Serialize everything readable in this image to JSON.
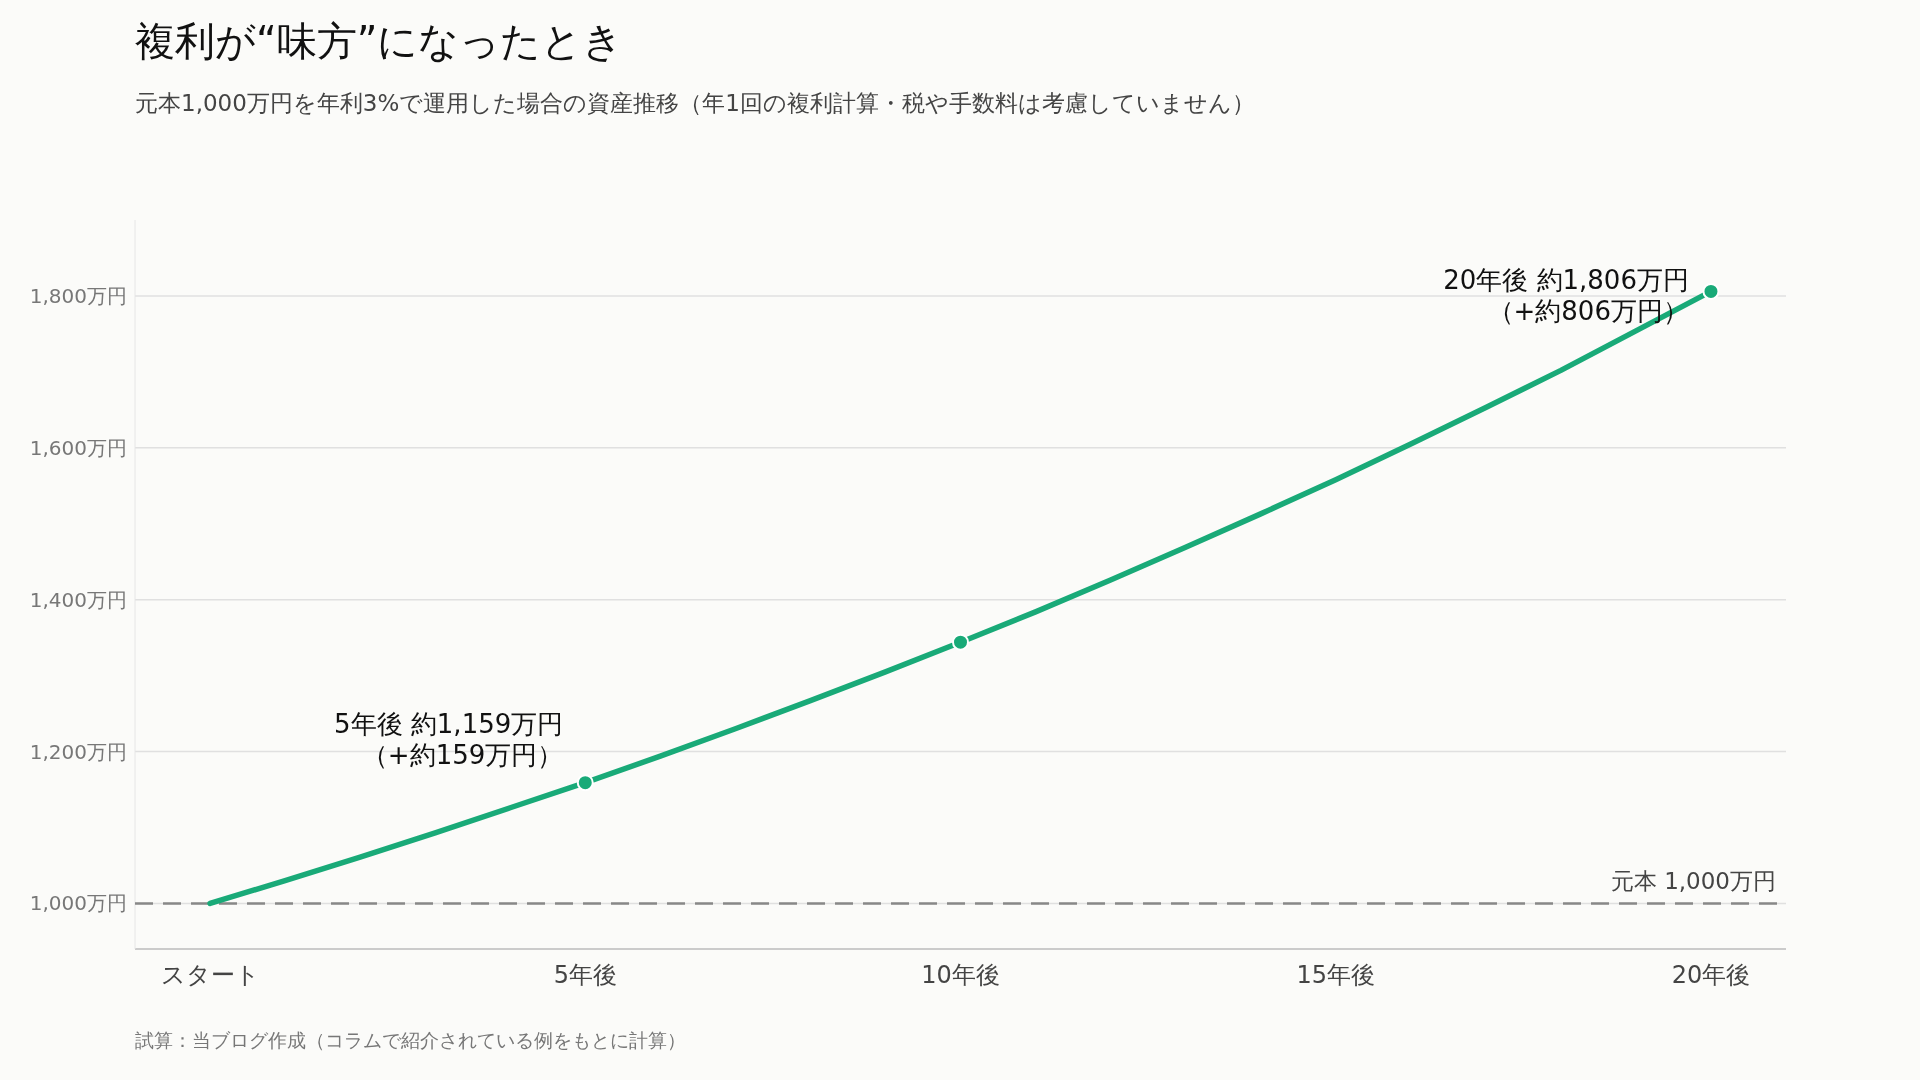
{
  "chart_data": {
    "type": "line",
    "title": "複利が“味方”になったとき",
    "subtitle": "元本1,000万円を年利3%で運用した場合の資産推移（年1回の複利計算・税や手数料は考慮していません）",
    "series": [
      {
        "color": "#19aa78",
        "marker": "none",
        "x": [
          0,
          1,
          2,
          3,
          4,
          5,
          6,
          7,
          8,
          9,
          10,
          11,
          12,
          13,
          14,
          15,
          16,
          17,
          18,
          19,
          20
        ],
        "values": [
          1000,
          1030,
          1061,
          1093,
          1126,
          1159,
          1194,
          1230,
          1267,
          1305,
          1344,
          1384,
          1426,
          1469,
          1513,
          1558,
          1605,
          1653,
          1702,
          1754,
          1806
        ]
      },
      {
        "type": "scatter",
        "color": "#19aa78",
        "marker": "circle",
        "x": [
          5,
          10,
          20
        ],
        "values": [
          1159,
          1344,
          1806
        ]
      }
    ],
    "xlim": [
      -1,
      21
    ],
    "xticks": [
      {
        "value": 0,
        "label": "スタート"
      },
      {
        "value": 5,
        "label": "5年後"
      },
      {
        "value": 10,
        "label": "10年後"
      },
      {
        "value": 15,
        "label": "15年後"
      },
      {
        "value": 20,
        "label": "20年後"
      }
    ],
    "ylim": [
      940,
      1900
    ],
    "yticks": [
      {
        "value": 1000,
        "label": "1,000万円"
      },
      {
        "value": 1200,
        "label": "1,200万円"
      },
      {
        "value": 1400,
        "label": "1,400万円"
      },
      {
        "value": 1600,
        "label": "1,600万円"
      },
      {
        "value": 1800,
        "label": "1,800万円"
      }
    ],
    "grid": "y",
    "ref_lines": [
      {
        "axis": "y",
        "value": 1000,
        "label": "元本 1,000万円",
        "color": "#888888",
        "line_style": "dashed"
      }
    ],
    "annotations": [
      {
        "text": "5年後 約1,159万円（+約159万円）",
        "x": 5,
        "y": 1159
      },
      {
        "text": "20年後 約1,806万円（+約806万円）",
        "x": 20,
        "y": 1806
      },
      "試算：当ブログ作成（コラムで紹介されている例をもとに計算）"
    ]
  }
}
